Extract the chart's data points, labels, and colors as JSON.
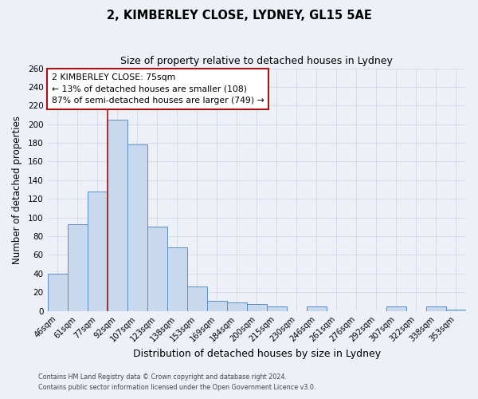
{
  "title": "2, KIMBERLEY CLOSE, LYDNEY, GL15 5AE",
  "subtitle": "Size of property relative to detached houses in Lydney",
  "xlabel": "Distribution of detached houses by size in Lydney",
  "ylabel": "Number of detached properties",
  "categories": [
    "46sqm",
    "61sqm",
    "77sqm",
    "92sqm",
    "107sqm",
    "123sqm",
    "138sqm",
    "153sqm",
    "169sqm",
    "184sqm",
    "200sqm",
    "215sqm",
    "230sqm",
    "246sqm",
    "261sqm",
    "276sqm",
    "292sqm",
    "307sqm",
    "322sqm",
    "338sqm",
    "353sqm"
  ],
  "values": [
    40,
    93,
    128,
    205,
    178,
    90,
    68,
    26,
    11,
    9,
    7,
    5,
    0,
    5,
    0,
    0,
    0,
    5,
    0,
    5,
    1
  ],
  "bar_color": "#c9d9ed",
  "bar_edge_color": "#5b8fc9",
  "grid_color": "#d0d8e8",
  "background_color": "#edf1f7",
  "vline_color": "#aa1111",
  "annotation_text_line1": "2 KIMBERLEY CLOSE: 75sqm",
  "annotation_text_line2": "← 13% of detached houses are smaller (108)",
  "annotation_text_line3": "87% of semi-detached houses are larger (749) →",
  "annotation_box_color": "#ffffff",
  "annotation_border_color": "#aa1111",
  "ylim": [
    0,
    260
  ],
  "yticks": [
    0,
    20,
    40,
    60,
    80,
    100,
    120,
    140,
    160,
    180,
    200,
    220,
    240,
    260
  ],
  "footer_line1": "Contains HM Land Registry data © Crown copyright and database right 2024.",
  "footer_line2": "Contains public sector information licensed under the Open Government Licence v3.0."
}
